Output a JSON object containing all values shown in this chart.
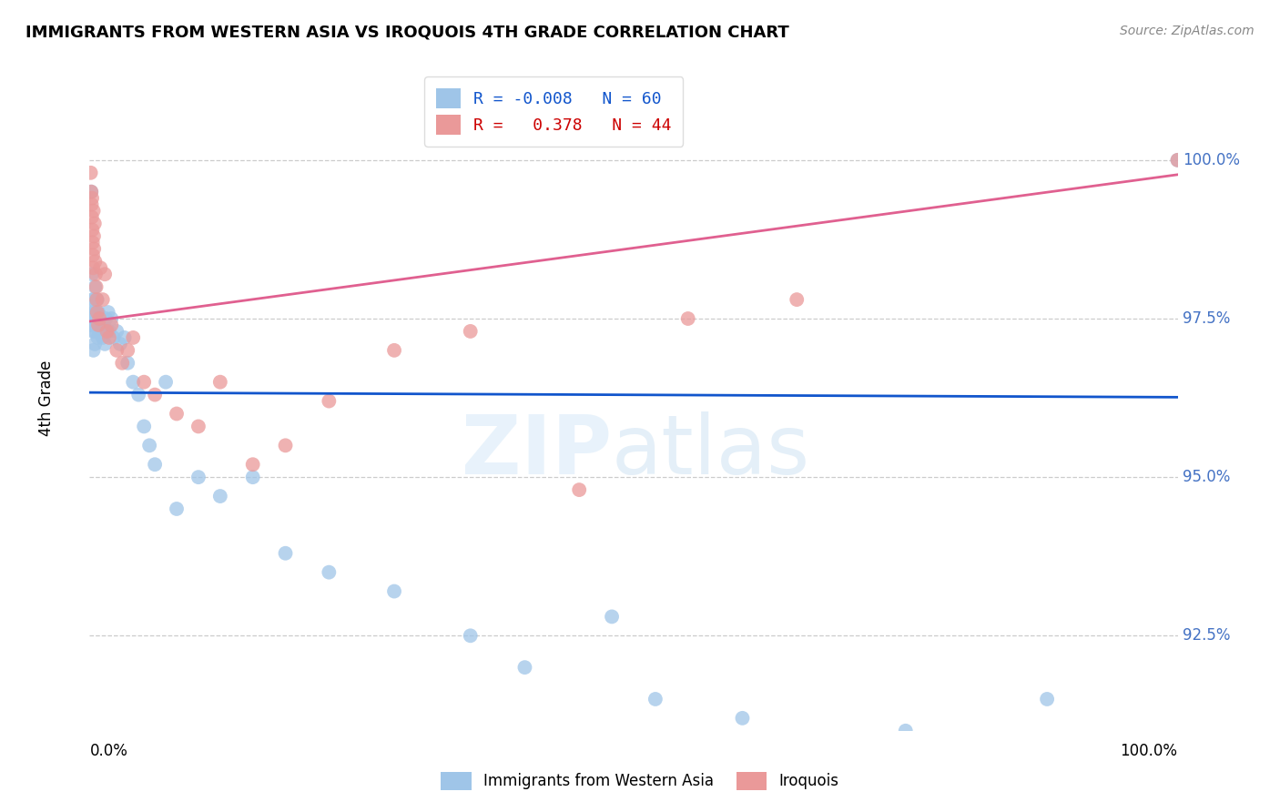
{
  "title": "IMMIGRANTS FROM WESTERN ASIA VS IROQUOIS 4TH GRADE CORRELATION CHART",
  "source": "Source: ZipAtlas.com",
  "ylabel": "4th Grade",
  "y_ticks": [
    92.5,
    95.0,
    97.5,
    100.0
  ],
  "y_right_labels": [
    "92.5%",
    "95.0%",
    "97.5%",
    "100.0%"
  ],
  "x_range": [
    0.0,
    100.0
  ],
  "y_range": [
    91.0,
    101.5
  ],
  "legend_blue_r": "-0.008",
  "legend_blue_n": "60",
  "legend_pink_r": "0.378",
  "legend_pink_n": "44",
  "blue_color": "#9fc5e8",
  "pink_color": "#ea9999",
  "blue_line_color": "#1155cc",
  "pink_line_color": "#e06090",
  "blue_R": -0.008,
  "pink_R": 0.378,
  "blue_x": [
    0.15,
    0.18,
    0.2,
    0.22,
    0.25,
    0.28,
    0.3,
    0.32,
    0.35,
    0.38,
    0.4,
    0.42,
    0.45,
    0.48,
    0.5,
    0.55,
    0.6,
    0.65,
    0.7,
    0.75,
    0.8,
    0.85,
    0.9,
    0.95,
    1.0,
    1.1,
    1.2,
    1.3,
    1.4,
    1.5,
    1.6,
    1.7,
    1.8,
    2.0,
    2.2,
    2.5,
    2.8,
    3.2,
    3.5,
    4.0,
    4.5,
    5.0,
    5.5,
    6.0,
    7.0,
    8.0,
    10.0,
    12.0,
    15.0,
    18.0,
    22.0,
    28.0,
    35.0,
    40.0,
    48.0,
    52.0,
    60.0,
    75.0,
    88.0,
    100.0
  ],
  "blue_y": [
    99.5,
    97.4,
    97.6,
    98.2,
    97.8,
    97.5,
    97.3,
    97.4,
    97.0,
    97.6,
    97.8,
    97.5,
    97.3,
    97.1,
    98.0,
    97.6,
    97.5,
    97.4,
    97.8,
    97.2,
    97.6,
    97.3,
    97.5,
    97.4,
    97.5,
    97.3,
    97.2,
    97.4,
    97.1,
    97.5,
    97.3,
    97.6,
    97.3,
    97.5,
    97.2,
    97.3,
    97.1,
    97.2,
    96.8,
    96.5,
    96.3,
    95.8,
    95.5,
    95.2,
    96.5,
    94.5,
    95.0,
    94.7,
    95.0,
    93.8,
    93.5,
    93.2,
    92.5,
    92.0,
    92.8,
    91.5,
    91.2,
    91.0,
    91.5,
    100.0
  ],
  "pink_x": [
    0.1,
    0.15,
    0.18,
    0.2,
    0.22,
    0.25,
    0.28,
    0.3,
    0.32,
    0.35,
    0.38,
    0.4,
    0.45,
    0.5,
    0.55,
    0.6,
    0.65,
    0.7,
    0.8,
    0.9,
    1.0,
    1.2,
    1.4,
    1.6,
    1.8,
    2.0,
    2.5,
    3.0,
    3.5,
    4.0,
    5.0,
    6.0,
    8.0,
    10.0,
    12.0,
    15.0,
    18.0,
    22.0,
    28.0,
    35.0,
    45.0,
    55.0,
    65.0,
    100.0
  ],
  "pink_y": [
    99.8,
    99.5,
    99.3,
    99.1,
    99.4,
    98.9,
    98.7,
    98.5,
    98.3,
    99.2,
    98.8,
    98.6,
    99.0,
    98.4,
    98.2,
    98.0,
    97.8,
    97.6,
    97.4,
    97.5,
    98.3,
    97.8,
    98.2,
    97.3,
    97.2,
    97.4,
    97.0,
    96.8,
    97.0,
    97.2,
    96.5,
    96.3,
    96.0,
    95.8,
    96.5,
    95.2,
    95.5,
    96.2,
    97.0,
    97.3,
    94.8,
    97.5,
    97.8,
    100.0
  ]
}
